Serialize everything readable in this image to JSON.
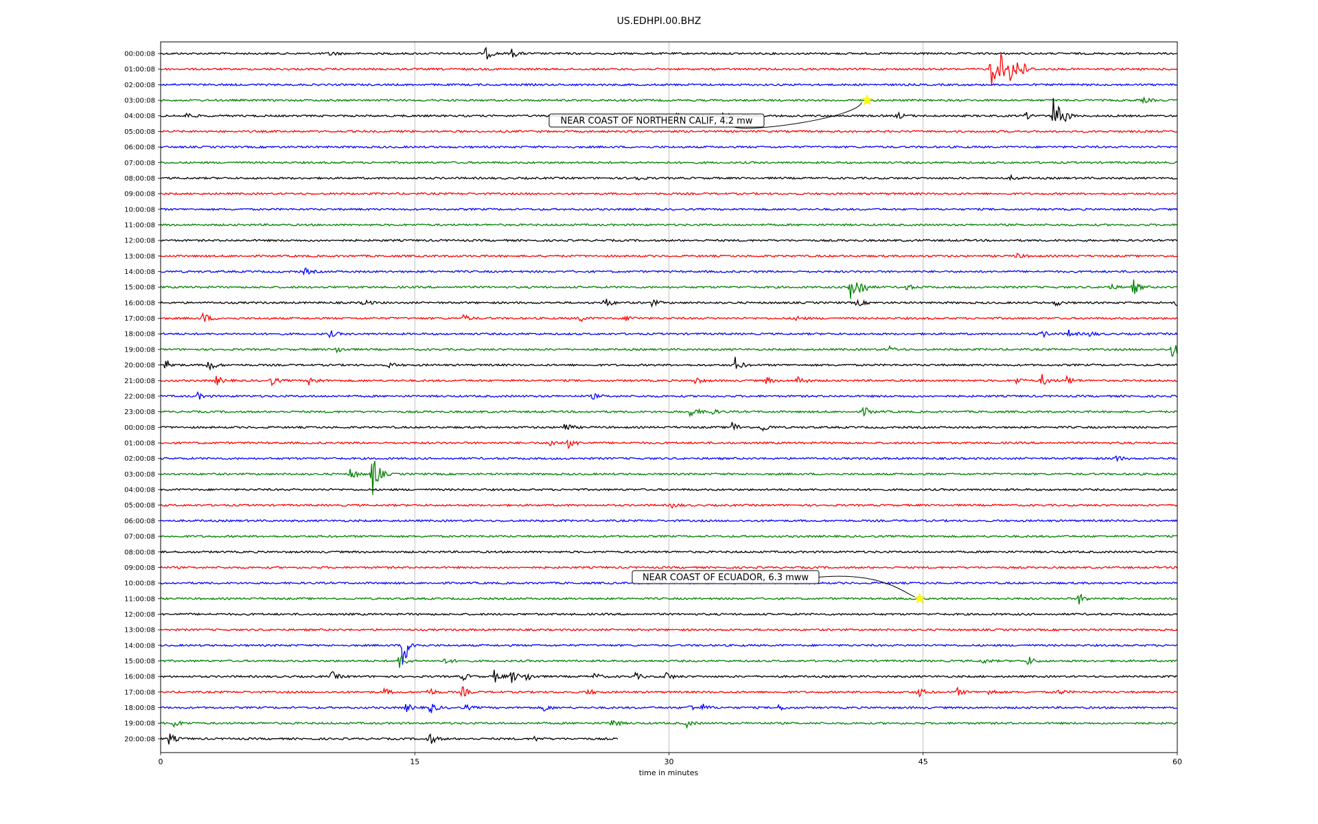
{
  "chart_data": {
    "type": "line",
    "title": "US.EDHPI.00.BHZ",
    "xlabel": "time in minutes",
    "ylabel": "",
    "xlim": [
      0,
      60
    ],
    "x_ticks": [
      "0",
      "15",
      "30",
      "45",
      "60"
    ],
    "x_tick_values": [
      0,
      15,
      30,
      45,
      60
    ],
    "grid": "vertical",
    "trace_colors": [
      "#000000",
      "#ff0000",
      "#0000ff",
      "#008000"
    ],
    "row_labels": [
      "00:00:08",
      "01:00:08",
      "02:00:08",
      "03:00:08",
      "04:00:08",
      "05:00:08",
      "06:00:08",
      "07:00:08",
      "08:00:08",
      "09:00:08",
      "10:00:08",
      "11:00:08",
      "12:00:08",
      "13:00:08",
      "14:00:08",
      "15:00:08",
      "16:00:08",
      "17:00:08",
      "18:00:08",
      "19:00:08",
      "20:00:08",
      "21:00:08",
      "22:00:08",
      "23:00:08",
      "00:00:08",
      "01:00:08",
      "02:00:08",
      "03:00:08",
      "04:00:08",
      "05:00:08",
      "06:00:08",
      "07:00:08",
      "08:00:08",
      "09:00:08",
      "10:00:08",
      "11:00:08",
      "12:00:08",
      "13:00:08",
      "14:00:08",
      "15:00:08",
      "16:00:08",
      "17:00:08",
      "18:00:08",
      "19:00:08",
      "20:00:08"
    ],
    "last_row_end_minute": 27,
    "bursts": [
      {
        "row": 0,
        "t": 19.2,
        "a": 9
      },
      {
        "row": 0,
        "t": 20.7,
        "a": 7
      },
      {
        "row": 0,
        "t": 10,
        "a": 4
      },
      {
        "row": 1,
        "t": 49,
        "a": 30
      },
      {
        "row": 1,
        "t": 49.6,
        "a": 20
      },
      {
        "row": 1,
        "t": 50.1,
        "a": 16
      },
      {
        "row": 1,
        "t": 50.6,
        "a": 24
      },
      {
        "row": 3,
        "t": 58,
        "a": 4
      },
      {
        "row": 4,
        "t": 1.5,
        "a": 5
      },
      {
        "row": 4,
        "t": 30.5,
        "a": 6
      },
      {
        "row": 4,
        "t": 33.2,
        "a": 7
      },
      {
        "row": 4,
        "t": 43.5,
        "a": 5
      },
      {
        "row": 4,
        "t": 51,
        "a": 6
      },
      {
        "row": 4,
        "t": 52.7,
        "a": 34
      },
      {
        "row": 4,
        "t": 53.2,
        "a": 10
      },
      {
        "row": 8,
        "t": 28,
        "a": 4
      },
      {
        "row": 8,
        "t": 50.2,
        "a": 3
      },
      {
        "row": 13,
        "t": 50.5,
        "a": 4
      },
      {
        "row": 14,
        "t": 8.5,
        "a": 5
      },
      {
        "row": 15,
        "t": 40.7,
        "a": 32
      },
      {
        "row": 15,
        "t": 41.3,
        "a": 10
      },
      {
        "row": 15,
        "t": 44,
        "a": 5
      },
      {
        "row": 15,
        "t": 56,
        "a": 5
      },
      {
        "row": 15,
        "t": 57.4,
        "a": 12
      },
      {
        "row": 16,
        "t": 12,
        "a": 5
      },
      {
        "row": 16,
        "t": 26.2,
        "a": 8
      },
      {
        "row": 16,
        "t": 29,
        "a": 5
      },
      {
        "row": 16,
        "t": 41.1,
        "a": 6
      },
      {
        "row": 16,
        "t": 52.8,
        "a": 5
      },
      {
        "row": 16,
        "t": 59.8,
        "a": 6
      },
      {
        "row": 17,
        "t": 2.5,
        "a": 9
      },
      {
        "row": 17,
        "t": 17.9,
        "a": 5
      },
      {
        "row": 17,
        "t": 24.7,
        "a": 5
      },
      {
        "row": 17,
        "t": 27.5,
        "a": 5
      },
      {
        "row": 17,
        "t": 37.5,
        "a": 4
      },
      {
        "row": 18,
        "t": 10,
        "a": 5
      },
      {
        "row": 18,
        "t": 52,
        "a": 5
      },
      {
        "row": 18,
        "t": 53.6,
        "a": 5
      },
      {
        "row": 18,
        "t": 54.8,
        "a": 4
      },
      {
        "row": 19,
        "t": 10.4,
        "a": 5
      },
      {
        "row": 19,
        "t": 43,
        "a": 4
      },
      {
        "row": 19,
        "t": 59.7,
        "a": 12
      },
      {
        "row": 20,
        "t": 0.3,
        "a": 9
      },
      {
        "row": 20,
        "t": 2.8,
        "a": 11
      },
      {
        "row": 20,
        "t": 13.5,
        "a": 4
      },
      {
        "row": 20,
        "t": 33.9,
        "a": 11
      },
      {
        "row": 21,
        "t": 3.3,
        "a": 7
      },
      {
        "row": 21,
        "t": 6.5,
        "a": 7
      },
      {
        "row": 21,
        "t": 8.8,
        "a": 9
      },
      {
        "row": 21,
        "t": 31.5,
        "a": 6
      },
      {
        "row": 21,
        "t": 35.7,
        "a": 6
      },
      {
        "row": 21,
        "t": 37.6,
        "a": 9
      },
      {
        "row": 21,
        "t": 50.5,
        "a": 5
      },
      {
        "row": 21,
        "t": 52,
        "a": 9
      },
      {
        "row": 21,
        "t": 53.5,
        "a": 7
      },
      {
        "row": 22,
        "t": 2.2,
        "a": 5
      },
      {
        "row": 22,
        "t": 25.5,
        "a": 4
      },
      {
        "row": 23,
        "t": 31.3,
        "a": 10
      },
      {
        "row": 23,
        "t": 32.3,
        "a": 8
      },
      {
        "row": 23,
        "t": 41.5,
        "a": 8
      },
      {
        "row": 24,
        "t": 23.8,
        "a": 9
      },
      {
        "row": 24,
        "t": 33.7,
        "a": 9
      },
      {
        "row": 24,
        "t": 35.5,
        "a": 7
      },
      {
        "row": 25,
        "t": 23,
        "a": 6
      },
      {
        "row": 25,
        "t": 24.1,
        "a": 9
      },
      {
        "row": 26,
        "t": 56.3,
        "a": 6
      },
      {
        "row": 27,
        "t": 11.2,
        "a": 9
      },
      {
        "row": 27,
        "t": 12.5,
        "a": 36
      },
      {
        "row": 29,
        "t": 30.2,
        "a": 4
      },
      {
        "row": 35,
        "t": 54.2,
        "a": 8
      },
      {
        "row": 38,
        "t": 14.3,
        "a": 36
      },
      {
        "row": 39,
        "t": 14.1,
        "a": 12
      },
      {
        "row": 39,
        "t": 16.8,
        "a": 5
      },
      {
        "row": 39,
        "t": 48.5,
        "a": 4
      },
      {
        "row": 39,
        "t": 51.2,
        "a": 7
      },
      {
        "row": 40,
        "t": 10.1,
        "a": 7
      },
      {
        "row": 40,
        "t": 17.8,
        "a": 6
      },
      {
        "row": 40,
        "t": 19.7,
        "a": 9
      },
      {
        "row": 40,
        "t": 20.7,
        "a": 10
      },
      {
        "row": 40,
        "t": 21.6,
        "a": 7
      },
      {
        "row": 40,
        "t": 25.6,
        "a": 5
      },
      {
        "row": 40,
        "t": 28,
        "a": 5
      },
      {
        "row": 40,
        "t": 29.8,
        "a": 7
      },
      {
        "row": 41,
        "t": 13.2,
        "a": 5
      },
      {
        "row": 41,
        "t": 15.8,
        "a": 7
      },
      {
        "row": 41,
        "t": 17.8,
        "a": 8
      },
      {
        "row": 41,
        "t": 25.2,
        "a": 5
      },
      {
        "row": 41,
        "t": 44.7,
        "a": 8
      },
      {
        "row": 41,
        "t": 47,
        "a": 6
      },
      {
        "row": 41,
        "t": 48.9,
        "a": 5
      },
      {
        "row": 41,
        "t": 53,
        "a": 4
      },
      {
        "row": 42,
        "t": 14.5,
        "a": 6
      },
      {
        "row": 42,
        "t": 15.9,
        "a": 9
      },
      {
        "row": 42,
        "t": 18,
        "a": 4
      },
      {
        "row": 42,
        "t": 22.6,
        "a": 6
      },
      {
        "row": 42,
        "t": 31.2,
        "a": 5
      },
      {
        "row": 42,
        "t": 32,
        "a": 5
      },
      {
        "row": 42,
        "t": 36.5,
        "a": 4
      },
      {
        "row": 43,
        "t": 0.8,
        "a": 6
      },
      {
        "row": 43,
        "t": 26.6,
        "a": 8
      },
      {
        "row": 43,
        "t": 31,
        "a": 6
      },
      {
        "row": 44,
        "t": 0.5,
        "a": 9
      },
      {
        "row": 44,
        "t": 15.8,
        "a": 11
      },
      {
        "row": 44,
        "t": 22,
        "a": 4
      }
    ],
    "events": [
      {
        "label": "NEAR COAST OF NORTHERN CALIF, 4.2 mw",
        "row": 3,
        "minute": 41.7
      },
      {
        "label": "NEAR COAST OF ECUADOR, 6.3 mww",
        "row": 35,
        "minute": 44.8
      }
    ],
    "event_marker_color": "#ffff00"
  }
}
